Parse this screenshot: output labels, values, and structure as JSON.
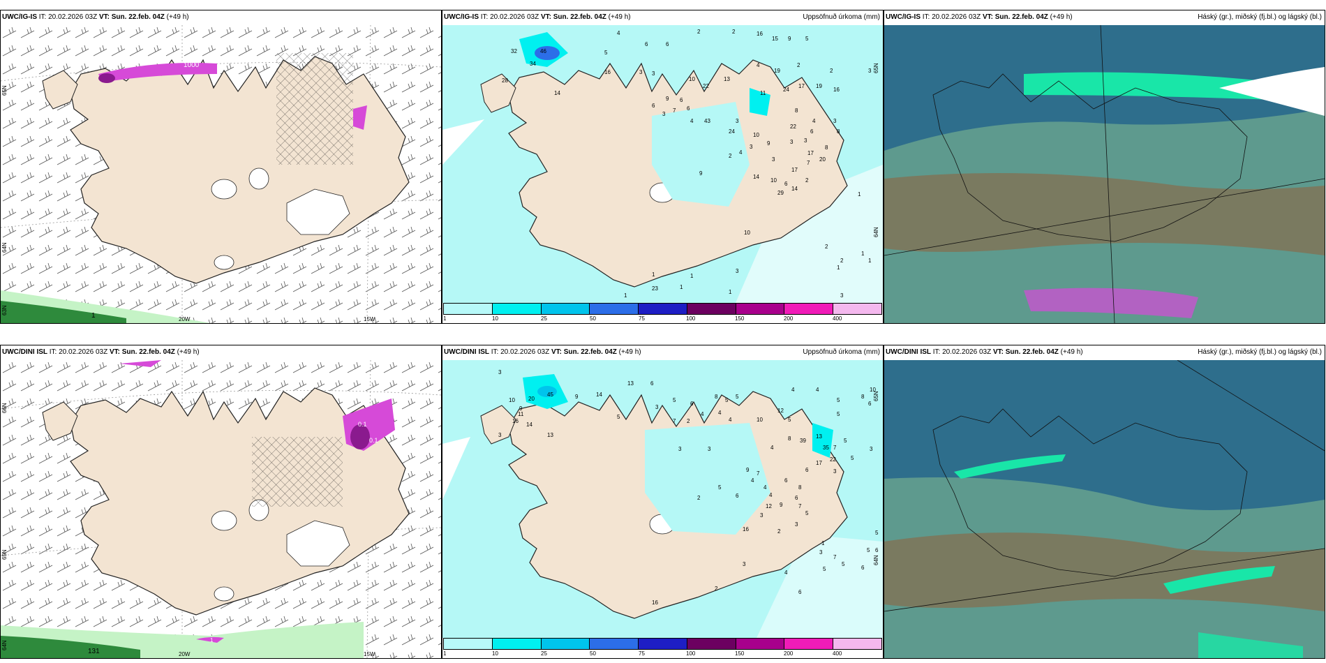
{
  "panels": [
    {
      "id": "p1",
      "model": "UWC/IG-IS",
      "it_label": "IT:",
      "it": "20.02.2026 03Z",
      "vt_label": "VT:",
      "vt": "Sun. 22.feb. 04Z",
      "lead": "(+49 h)",
      "right_title": "",
      "lat_labels": [
        "65N",
        "64N",
        "63N"
      ],
      "lon_labels": [
        "20W",
        "15W"
      ],
      "map_values": [
        "1000",
        "1"
      ]
    },
    {
      "id": "p2",
      "model": "UWC/IG-IS",
      "it_label": "IT:",
      "it": "20.02.2026 03Z",
      "vt_label": "VT:",
      "vt": "Sun. 22.feb. 04Z",
      "lead": "(+49 h)",
      "right_title": "Uppsöfnuð úrkoma (mm)",
      "lat_labels": [
        "65N",
        "64N"
      ],
      "map_values": [
        "4",
        "6",
        "6",
        "2",
        "2",
        "16",
        "15",
        "9",
        "5",
        "32",
        "34",
        "46",
        "5",
        "16",
        "3",
        "4",
        "2",
        "28",
        "14",
        "10",
        "22",
        "13",
        "3",
        "19",
        "2",
        "3",
        "6",
        "9",
        "11",
        "24",
        "17",
        "19",
        "16",
        "6",
        "3",
        "7",
        "6",
        "8",
        "4",
        "43",
        "3",
        "4",
        "3",
        "22",
        "6",
        "8",
        "24",
        "10",
        "3",
        "3",
        "17",
        "8",
        "3",
        "9",
        "20",
        "7",
        "3",
        "2",
        "4",
        "17",
        "14",
        "10",
        "6",
        "2",
        "9",
        "14",
        "29",
        "1",
        "10",
        "2",
        "2",
        "1",
        "1",
        "1",
        "3",
        "1",
        "1",
        "23",
        "1",
        "1",
        "1",
        "3"
      ]
    },
    {
      "id": "p3",
      "model": "UWC/IG-IS",
      "it_label": "IT:",
      "it": "20.02.2026 03Z",
      "vt_label": "VT:",
      "vt": "Sun. 22.feb. 04Z",
      "lead": "(+49 h)",
      "right_title": "Háský (gr.), miðský (fj.bl.) og lágský (bl.)"
    },
    {
      "id": "p4",
      "model": "UWC/DINI ISL",
      "it_label": "IT:",
      "it": "20.02.2026 03Z",
      "vt_label": "VT:",
      "vt": "Sun. 22.feb. 04Z",
      "lead": "(+49 h)",
      "right_title": "",
      "lat_labels": [
        "66N",
        "65N",
        "64N"
      ],
      "lon_labels": [
        "20W",
        "15W"
      ],
      "map_values": [
        "0.1",
        "0.1",
        "1",
        "131"
      ]
    },
    {
      "id": "p5",
      "model": "UWC/DINI ISL",
      "it_label": "IT:",
      "it": "20.02.2026 03Z",
      "vt_label": "VT:",
      "vt": "Sun. 22.feb. 04Z",
      "lead": "(+49 h)",
      "right_title": "Uppsöfnuð úrkoma (mm)",
      "lat_labels": [
        "65N",
        "64N"
      ],
      "map_values": [
        "3",
        "10",
        "20",
        "45",
        "9",
        "13",
        "6",
        "14",
        "11",
        "9",
        "14",
        "16",
        "3",
        "5",
        "13",
        "5",
        "6",
        "3",
        "7",
        "2",
        "4",
        "8",
        "5",
        "5",
        "4",
        "4",
        "10",
        "12",
        "5",
        "10",
        "8",
        "6",
        "5",
        "4",
        "4",
        "39",
        "13",
        "5",
        "35",
        "7",
        "5",
        "8",
        "3",
        "4",
        "17",
        "22",
        "5",
        "6",
        "3",
        "3",
        "3",
        "9",
        "7",
        "6",
        "4",
        "5",
        "4",
        "8",
        "2",
        "6",
        "4",
        "6",
        "12",
        "9",
        "7",
        "5",
        "3",
        "3",
        "16",
        "2",
        "5",
        "5",
        "6",
        "3",
        "1",
        "7",
        "3",
        "4",
        "5",
        "5",
        "6",
        "2",
        "6",
        "16"
      ]
    },
    {
      "id": "p6",
      "model": "UWC/DINI ISL",
      "it_label": "IT:",
      "it": "20.02.2026 03Z",
      "vt_label": "VT:",
      "vt": "Sun. 22.feb. 04Z",
      "lead": "(+49 h)",
      "right_title": "Háský (gr.), miðský (fj.bl.) og lágský (bl.)"
    }
  ],
  "precip_legend": {
    "ticks": [
      "1",
      "10",
      "25",
      "50",
      "75",
      "100",
      "150",
      "200",
      "400"
    ],
    "colors": [
      "#b7f9f9",
      "#00f0f0",
      "#00c4ec",
      "#2c6ee8",
      "#1e1ec4",
      "#6c0060",
      "#a8008c",
      "#f01cb8",
      "#f4b8ee"
    ]
  },
  "colors": {
    "land": "#f3e4d2",
    "water": "#ffffff",
    "precip_light": "#b5f8f6",
    "cloud_dark": "#2e6e8c",
    "cloud_mid": "#5e9a8e",
    "cloud_brown": "#7a7a60",
    "high_cloud": "#19e6a8",
    "rain_green": "#2e8a3c",
    "rain_magenta": "#d64ad8"
  },
  "icons": [
    "wind-barbs",
    "snow-hatch"
  ]
}
